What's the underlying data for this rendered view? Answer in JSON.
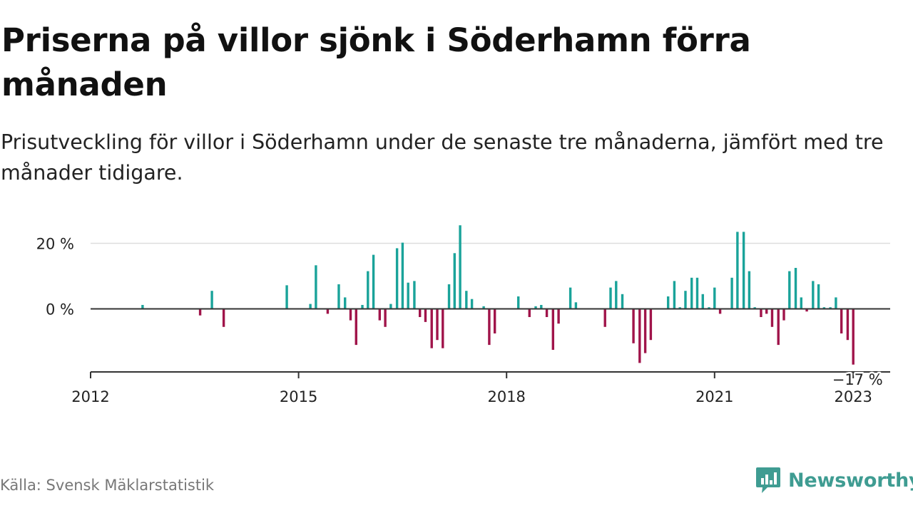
{
  "title": "Priserna på villor sjönk i Söderhamn förra månaden",
  "subtitle": "Prisutveckling för villor i Söderhamn under de senaste tre månaderna, jämfört med tre månader tidigare.",
  "source": "Källa: Svensk Mäklarstatistik",
  "brand": "Newsworthy",
  "colors": {
    "positive": "#1aa39a",
    "negative": "#a0144a",
    "brand": "#3f9c92",
    "zero_line": "#333333",
    "grid": "#dddddd"
  },
  "chart_data": {
    "type": "bar",
    "title": "",
    "xlabel": "",
    "ylabel": "",
    "x_unit": "year",
    "y_unit": "%",
    "xlim": [
      2012,
      2023.3
    ],
    "ylim": [
      -19,
      26
    ],
    "yticks": [
      {
        "value": 0,
        "label": "0 %"
      },
      {
        "value": 20,
        "label": "20 %"
      }
    ],
    "xticks": [
      {
        "value": 2012,
        "label": "2012"
      },
      {
        "value": 2015,
        "label": "2015"
      },
      {
        "value": 2018,
        "label": "2018"
      },
      {
        "value": 2021,
        "label": "2021"
      },
      {
        "value": 2023,
        "label": "2023"
      }
    ],
    "grid": "horizontal",
    "annotation": {
      "x": 2023,
      "value": -17,
      "label": "−17 %"
    },
    "series": [
      {
        "points": [
          {
            "x": 2012.75,
            "y": 1.2
          },
          {
            "x": 2013.58,
            "y": -2.0
          },
          {
            "x": 2013.75,
            "y": 5.5
          },
          {
            "x": 2013.92,
            "y": -5.5
          },
          {
            "x": 2014.83,
            "y": 7.2
          },
          {
            "x": 2015.17,
            "y": 1.5
          },
          {
            "x": 2015.25,
            "y": 13.3
          },
          {
            "x": 2015.42,
            "y": -1.5
          },
          {
            "x": 2015.58,
            "y": 7.5
          },
          {
            "x": 2015.67,
            "y": 3.5
          },
          {
            "x": 2015.75,
            "y": -3.5
          },
          {
            "x": 2015.83,
            "y": -11.0
          },
          {
            "x": 2015.92,
            "y": 1.2
          },
          {
            "x": 2016.0,
            "y": 11.5
          },
          {
            "x": 2016.08,
            "y": 16.5
          },
          {
            "x": 2016.17,
            "y": -3.5
          },
          {
            "x": 2016.25,
            "y": -5.5
          },
          {
            "x": 2016.33,
            "y": 1.5
          },
          {
            "x": 2016.42,
            "y": 18.5
          },
          {
            "x": 2016.5,
            "y": 20.2
          },
          {
            "x": 2016.58,
            "y": 8.0
          },
          {
            "x": 2016.67,
            "y": 8.5
          },
          {
            "x": 2016.75,
            "y": -2.5
          },
          {
            "x": 2016.83,
            "y": -4.0
          },
          {
            "x": 2016.92,
            "y": -12.0
          },
          {
            "x": 2017.0,
            "y": -9.5
          },
          {
            "x": 2017.08,
            "y": -12.0
          },
          {
            "x": 2017.17,
            "y": 7.5
          },
          {
            "x": 2017.25,
            "y": 17.0
          },
          {
            "x": 2017.33,
            "y": 25.5
          },
          {
            "x": 2017.42,
            "y": 5.5
          },
          {
            "x": 2017.5,
            "y": 3.0
          },
          {
            "x": 2017.67,
            "y": 0.8
          },
          {
            "x": 2017.75,
            "y": -11.0
          },
          {
            "x": 2017.83,
            "y": -7.5
          },
          {
            "x": 2018.17,
            "y": 3.8
          },
          {
            "x": 2018.33,
            "y": -2.5
          },
          {
            "x": 2018.42,
            "y": 0.8
          },
          {
            "x": 2018.5,
            "y": 1.2
          },
          {
            "x": 2018.58,
            "y": -2.5
          },
          {
            "x": 2018.67,
            "y": -12.5
          },
          {
            "x": 2018.75,
            "y": -4.5
          },
          {
            "x": 2018.92,
            "y": 6.5
          },
          {
            "x": 2019.0,
            "y": 2.0
          },
          {
            "x": 2019.42,
            "y": -5.5
          },
          {
            "x": 2019.5,
            "y": 6.5
          },
          {
            "x": 2019.58,
            "y": 8.5
          },
          {
            "x": 2019.67,
            "y": 4.5
          },
          {
            "x": 2019.83,
            "y": -10.5
          },
          {
            "x": 2019.92,
            "y": -16.5
          },
          {
            "x": 2020.0,
            "y": -13.5
          },
          {
            "x": 2020.08,
            "y": -9.5
          },
          {
            "x": 2020.33,
            "y": 3.8
          },
          {
            "x": 2020.42,
            "y": 8.5
          },
          {
            "x": 2020.5,
            "y": 0.5
          },
          {
            "x": 2020.58,
            "y": 5.5
          },
          {
            "x": 2020.67,
            "y": 9.5
          },
          {
            "x": 2020.75,
            "y": 9.5
          },
          {
            "x": 2020.83,
            "y": 4.5
          },
          {
            "x": 2020.92,
            "y": 0.5
          },
          {
            "x": 2021.0,
            "y": 0.5
          },
          {
            "x": 2021.0,
            "y": 6.5
          },
          {
            "x": 2021.08,
            "y": -1.5
          },
          {
            "x": 2021.25,
            "y": 9.5
          },
          {
            "x": 2021.33,
            "y": 23.5
          },
          {
            "x": 2021.42,
            "y": 23.5
          },
          {
            "x": 2021.5,
            "y": 11.5
          },
          {
            "x": 2021.58,
            "y": 0.5
          },
          {
            "x": 2021.67,
            "y": -2.5
          },
          {
            "x": 2021.75,
            "y": -1.5
          },
          {
            "x": 2021.83,
            "y": -5.5
          },
          {
            "x": 2021.92,
            "y": -11.0
          },
          {
            "x": 2022.0,
            "y": -3.5
          },
          {
            "x": 2022.08,
            "y": 11.5
          },
          {
            "x": 2022.17,
            "y": 12.5
          },
          {
            "x": 2022.25,
            "y": 3.5
          },
          {
            "x": 2022.33,
            "y": -0.8
          },
          {
            "x": 2022.42,
            "y": 8.5
          },
          {
            "x": 2022.5,
            "y": 7.5
          },
          {
            "x": 2022.58,
            "y": 0.5
          },
          {
            "x": 2022.67,
            "y": 0.5
          },
          {
            "x": 2022.75,
            "y": 3.5
          },
          {
            "x": 2022.83,
            "y": -7.5
          },
          {
            "x": 2022.92,
            "y": -9.5
          },
          {
            "x": 2023.0,
            "y": -17.0
          }
        ]
      }
    ]
  }
}
